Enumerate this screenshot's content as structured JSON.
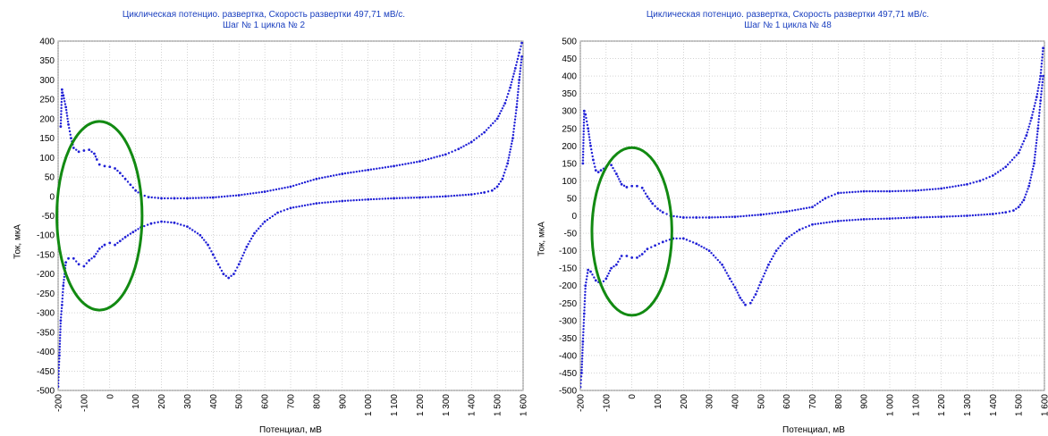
{
  "chart_data": [
    {
      "type": "scatter",
      "title_line1": "Циклическая потенцио. развертка, Скорость развертки 497,71 мВ/с.",
      "title_line2": "Шаг № 1 цикла № 2",
      "xlabel": "Потенциал, мВ",
      "ylabel": "Ток, мкА",
      "xlim": [
        -200,
        1600
      ],
      "ylim": [
        -500,
        400
      ],
      "x_ticks": [
        "-200",
        "-100",
        "0",
        "100",
        "200",
        "300",
        "400",
        "500",
        "600",
        "700",
        "800",
        "900",
        "1 000",
        "1 100",
        "1 200",
        "1 300",
        "1 400",
        "1 500",
        "1 600"
      ],
      "y_ticks": [
        "400",
        "350",
        "300",
        "250",
        "200",
        "150",
        "100",
        "50",
        "0",
        "-50",
        "-100",
        "-150",
        "-200",
        "-250",
        "-300",
        "-350",
        "-400",
        "-450",
        "-500"
      ],
      "grid": true,
      "series_color": "#1f1fd6",
      "annotation_color": "#128a12",
      "series": [
        {
          "values_x": [
            -190,
            -185,
            -180,
            -170,
            -160,
            -150,
            -140,
            -120,
            -100,
            -80,
            -60,
            -50,
            -40,
            -20,
            0,
            20,
            40,
            60,
            80,
            100,
            120,
            150,
            200,
            250,
            300,
            400,
            500,
            600,
            700,
            800,
            900,
            1000,
            1100,
            1200,
            1300,
            1350,
            1400,
            1450,
            1500,
            1530,
            1550,
            1570,
            1585,
            1595
          ],
          "values_y": [
            180,
            275,
            260,
            230,
            185,
            150,
            125,
            115,
            118,
            120,
            110,
            95,
            82,
            78,
            76,
            72,
            60,
            45,
            30,
            15,
            5,
            -2,
            -5,
            -5,
            -5,
            -3,
            3,
            12,
            25,
            45,
            58,
            68,
            78,
            90,
            108,
            122,
            140,
            165,
            200,
            240,
            280,
            330,
            370,
            395
          ]
        },
        {
          "values_x": [
            1595,
            1585,
            1575,
            1560,
            1540,
            1520,
            1500,
            1480,
            1450,
            1400,
            1300,
            1200,
            1100,
            1000,
            900,
            800,
            700,
            650,
            600,
            560,
            530,
            500,
            480,
            460,
            440,
            420,
            400,
            380,
            350,
            300,
            250,
            200,
            160,
            120,
            90,
            60,
            40,
            20,
            0,
            -20,
            -40,
            -60,
            -80,
            -100,
            -120,
            -140,
            -160,
            -170,
            -180,
            -185,
            -190,
            -195,
            -200
          ],
          "values_y": [
            360,
            300,
            230,
            150,
            85,
            45,
            25,
            15,
            10,
            5,
            0,
            -3,
            -5,
            -8,
            -12,
            -18,
            -30,
            -42,
            -65,
            -95,
            -130,
            -175,
            -200,
            -210,
            -200,
            -175,
            -150,
            -125,
            -100,
            -78,
            -68,
            -65,
            -70,
            -80,
            -92,
            -105,
            -115,
            -125,
            -120,
            -125,
            -135,
            -155,
            -165,
            -180,
            -175,
            -160,
            -160,
            -170,
            -230,
            -280,
            -320,
            -410,
            -490
          ]
        }
      ],
      "annotation": "ellipse",
      "ellipse_center": [
        -40,
        -50
      ],
      "ellipse_radii": [
        165,
        243
      ]
    },
    {
      "type": "scatter",
      "title_line1": "Циклическая потенцио. развертка, Скорость развертки 497,71 мВ/с.",
      "title_line2": "Шаг № 1 цикла № 48",
      "xlabel": "Потенциал, мВ",
      "ylabel": "Ток, мкА",
      "xlim": [
        -200,
        1600
      ],
      "ylim": [
        -500,
        500
      ],
      "x_ticks": [
        "-200",
        "-100",
        "0",
        "100",
        "200",
        "300",
        "400",
        "500",
        "600",
        "700",
        "800",
        "900",
        "1 000",
        "1 100",
        "1 200",
        "1 300",
        "1 400",
        "1 500",
        "1 600"
      ],
      "y_ticks": [
        "500",
        "450",
        "400",
        "350",
        "300",
        "250",
        "200",
        "150",
        "100",
        "50",
        "0",
        "-50",
        "-100",
        "-150",
        "-200",
        "-250",
        "-300",
        "-350",
        "-400",
        "-450",
        "-500"
      ],
      "grid": true,
      "series_color": "#1f1fd6",
      "annotation_color": "#128a12",
      "series": [
        {
          "values_x": [
            -190,
            -185,
            -180,
            -170,
            -160,
            -150,
            -140,
            -130,
            -120,
            -100,
            -80,
            -60,
            -40,
            -20,
            0,
            20,
            40,
            60,
            80,
            100,
            120,
            150,
            200,
            250,
            300,
            400,
            500,
            600,
            700,
            750,
            800,
            900,
            1000,
            1100,
            1200,
            1300,
            1350,
            1400,
            1450,
            1500,
            1530,
            1550,
            1570,
            1585,
            1595
          ],
          "values_y": [
            150,
            300,
            290,
            250,
            200,
            160,
            130,
            125,
            130,
            140,
            145,
            120,
            90,
            82,
            85,
            85,
            80,
            55,
            35,
            20,
            10,
            0,
            -5,
            -5,
            -5,
            -3,
            3,
            12,
            25,
            50,
            65,
            70,
            70,
            72,
            78,
            90,
            100,
            115,
            140,
            180,
            230,
            280,
            340,
            400,
            480
          ]
        },
        {
          "values_x": [
            1595,
            1585,
            1575,
            1560,
            1540,
            1520,
            1500,
            1480,
            1450,
            1400,
            1300,
            1200,
            1100,
            1000,
            900,
            800,
            700,
            650,
            600,
            560,
            530,
            500,
            480,
            460,
            440,
            420,
            400,
            380,
            350,
            300,
            250,
            200,
            160,
            120,
            90,
            60,
            40,
            20,
            0,
            -20,
            -40,
            -60,
            -80,
            -100,
            -120,
            -140,
            -160,
            -170,
            -180,
            -185,
            -190,
            -195,
            -200
          ],
          "values_y": [
            400,
            330,
            250,
            150,
            85,
            45,
            25,
            15,
            10,
            5,
            0,
            -3,
            -5,
            -8,
            -10,
            -15,
            -25,
            -40,
            -65,
            -100,
            -140,
            -190,
            -225,
            -250,
            -255,
            -235,
            -205,
            -180,
            -140,
            -100,
            -80,
            -65,
            -65,
            -75,
            -85,
            -95,
            -110,
            -120,
            -120,
            -115,
            -115,
            -140,
            -150,
            -180,
            -195,
            -185,
            -160,
            -155,
            -200,
            -280,
            -360,
            -450,
            -490
          ]
        }
      ],
      "annotation": "ellipse",
      "ellipse_center": [
        0,
        -45
      ],
      "ellipse_radii": [
        155,
        240
      ]
    }
  ]
}
